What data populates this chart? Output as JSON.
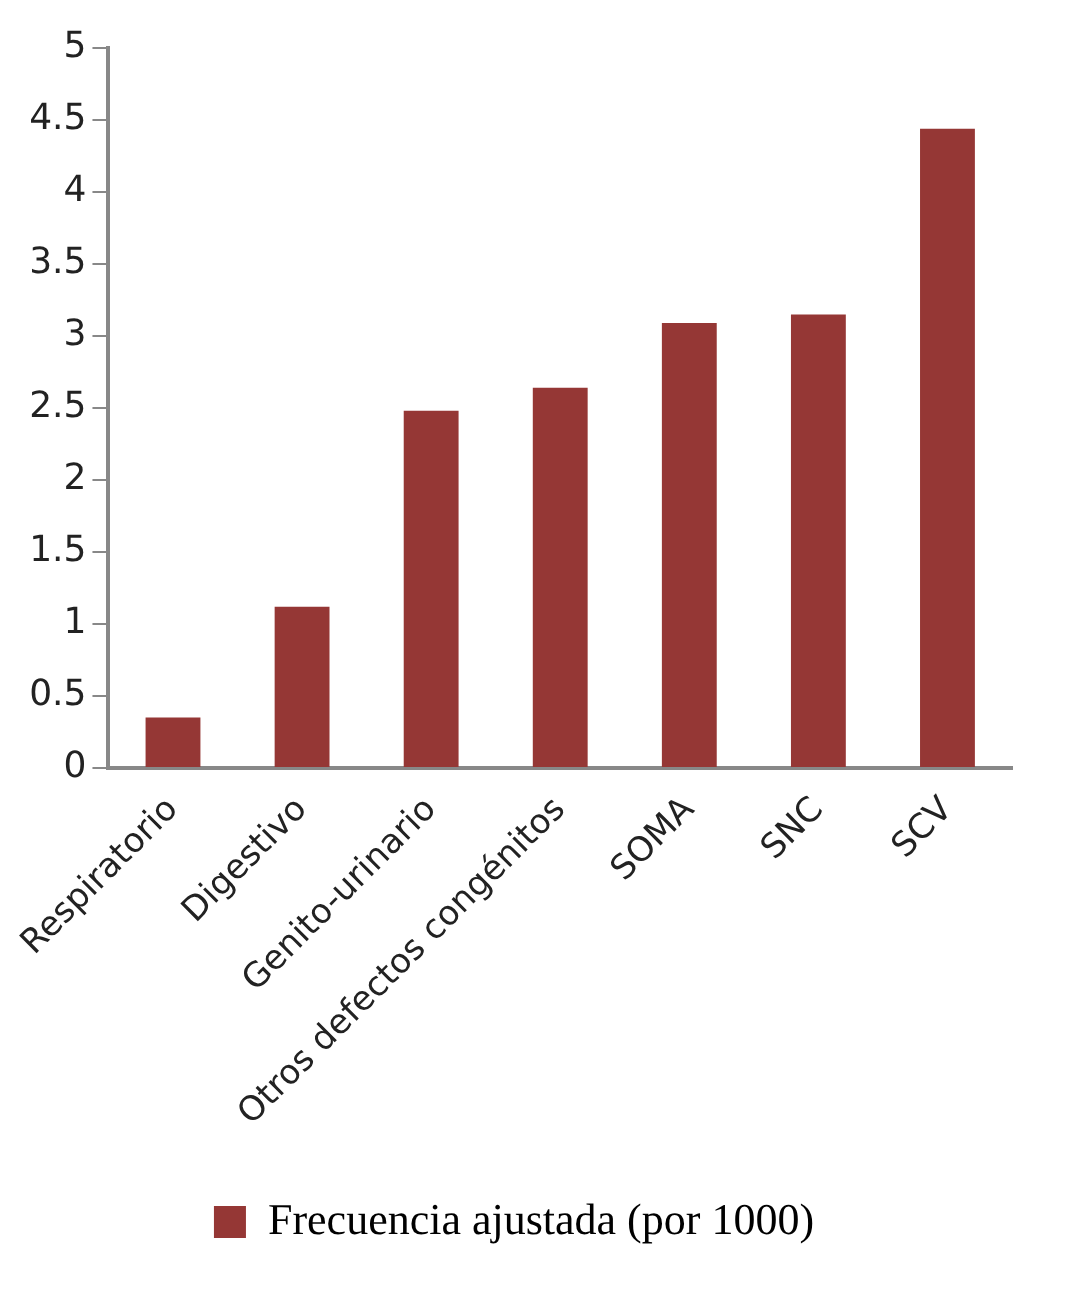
{
  "chart_data": {
    "type": "bar",
    "categories": [
      "Respiratorio",
      "Digestivo",
      "Genito-urinario",
      "Otros defectos congénitos",
      "SOMA",
      "SNC",
      "SCV"
    ],
    "series": [
      {
        "name": "Frecuencia ajustada (por 1000)",
        "color": "#953735",
        "values": [
          0.35,
          1.12,
          2.48,
          2.64,
          3.09,
          3.15,
          4.44
        ]
      }
    ],
    "ylim": [
      0,
      5
    ],
    "yticks": [
      0,
      0.5,
      1,
      1.5,
      2,
      2.5,
      3,
      3.5,
      4,
      4.5,
      5
    ],
    "grid": false,
    "legend": "bottom"
  }
}
